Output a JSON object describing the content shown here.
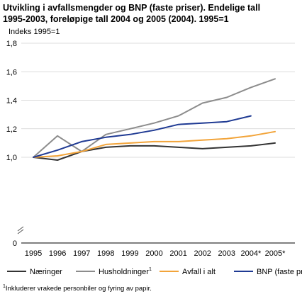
{
  "chart_data": {
    "type": "line",
    "title_lines": [
      "Utvikling i avfallsmengder og BNP (faste priser). Endelige tall",
      "1995-2003, foreløpige tall 2004 og 2005 (2004). 1995=1"
    ],
    "ylabel": "Indeks 1995=1",
    "categories": [
      "1995",
      "1996",
      "1997",
      "1998",
      "1999",
      "2000",
      "2001",
      "2002",
      "2003",
      "2004*",
      "2005*"
    ],
    "yticks": [
      "0",
      "1,0",
      "1,2",
      "1,4",
      "1,6",
      "1,8"
    ],
    "ylim": [
      0,
      1.8
    ],
    "axis_break": true,
    "grid": true,
    "legend_position": "bottom",
    "series": [
      {
        "name": "Næringer",
        "color": "#333333",
        "values": [
          1.0,
          0.98,
          1.04,
          1.07,
          1.08,
          1.08,
          1.07,
          1.06,
          1.07,
          1.08,
          1.1
        ]
      },
      {
        "name": "Husholdninger",
        "sup": "1",
        "color": "#8c8c8c",
        "values": [
          1.0,
          1.15,
          1.04,
          1.16,
          1.2,
          1.24,
          1.29,
          1.38,
          1.42,
          1.49,
          1.55
        ]
      },
      {
        "name": "Avfall i alt",
        "color": "#f2a43a",
        "values": [
          1.0,
          1.01,
          1.04,
          1.09,
          1.1,
          1.11,
          1.11,
          1.12,
          1.13,
          1.15,
          1.18
        ]
      },
      {
        "name": "BNP (faste priser)",
        "color": "#1f3a93",
        "values": [
          1.0,
          1.05,
          1.11,
          1.14,
          1.16,
          1.19,
          1.23,
          1.24,
          1.25,
          1.29,
          null
        ]
      }
    ],
    "footnote": {
      "sup": "1",
      "text": "Inkluderer vrakede personbiler og fyring av papir."
    }
  }
}
